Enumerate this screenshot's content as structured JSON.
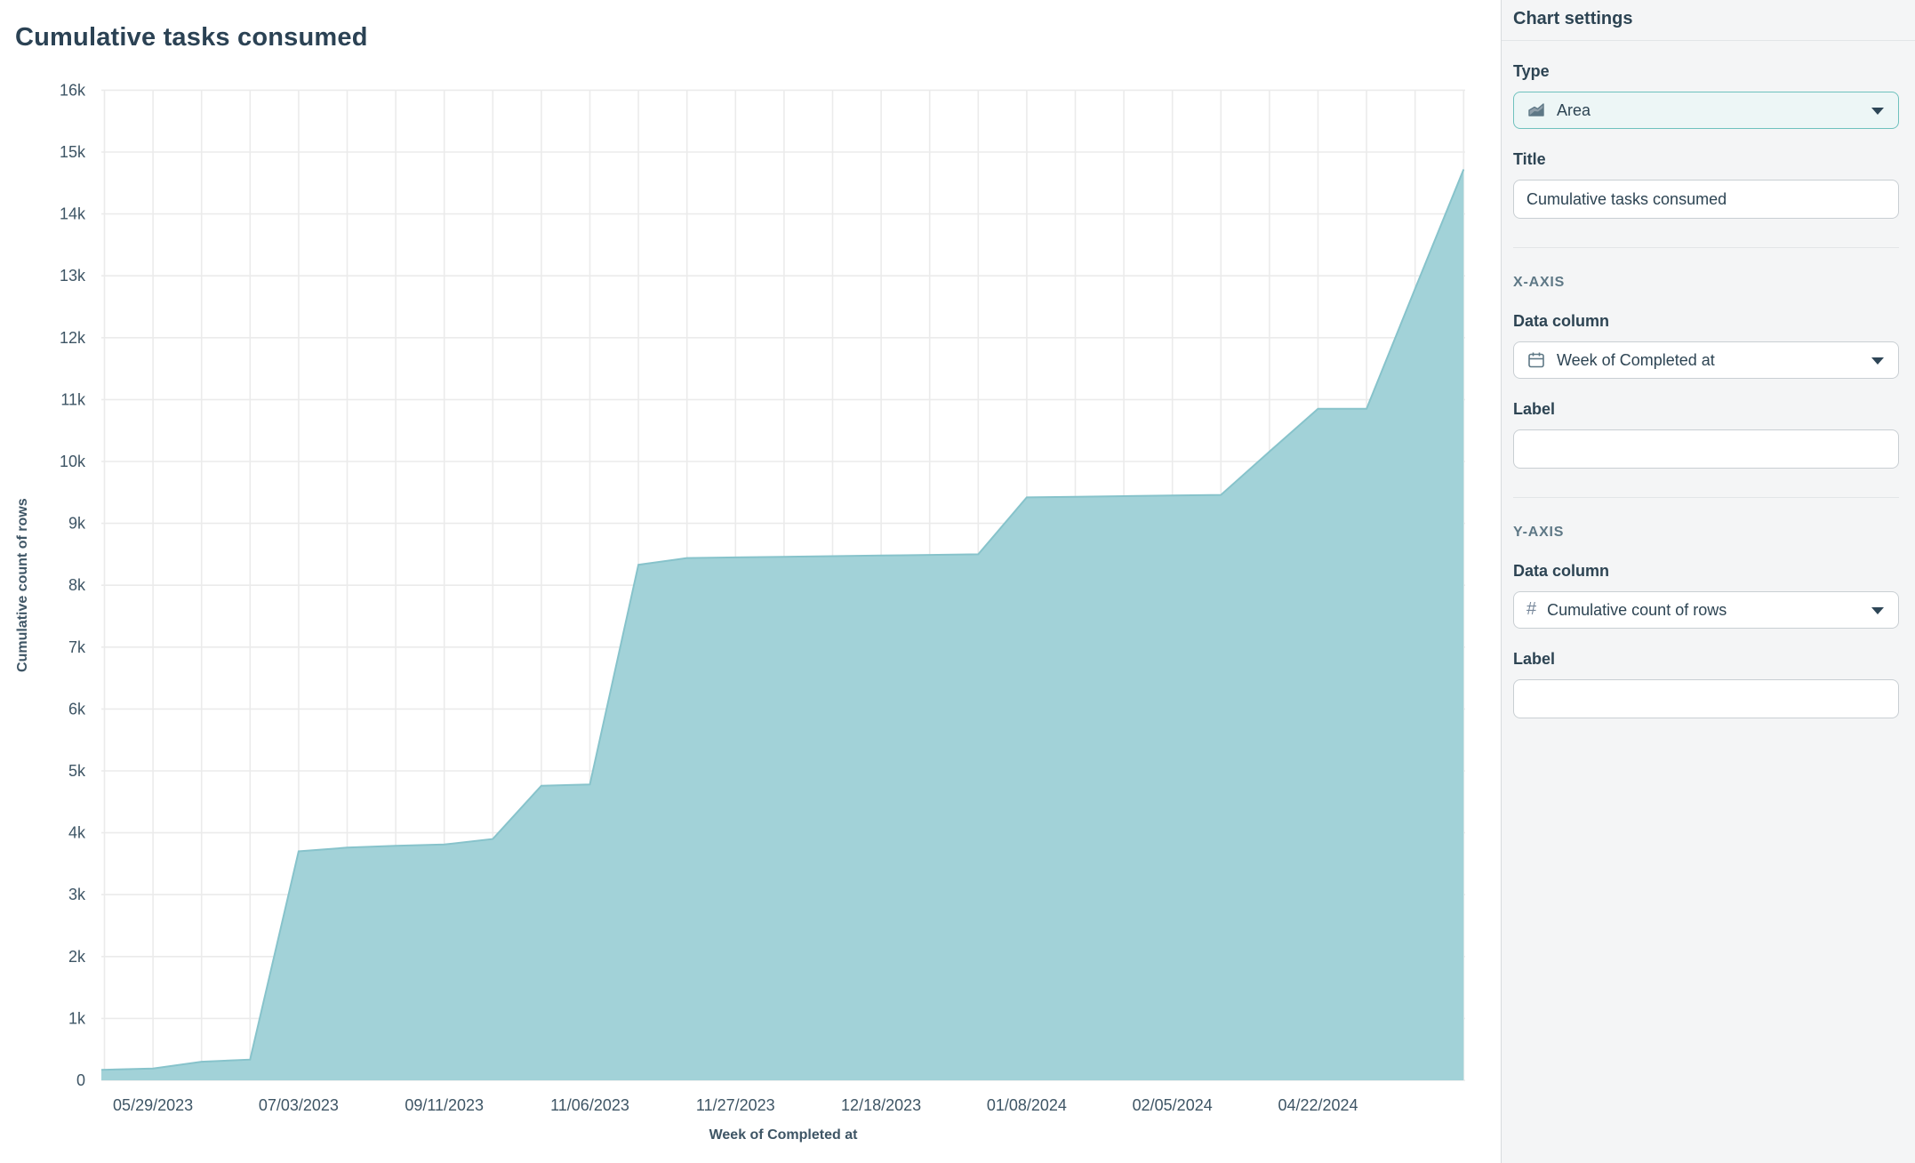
{
  "chart_data": {
    "type": "area",
    "title": "Cumulative tasks consumed",
    "xlabel": "Week of Completed at",
    "ylabel": "Cumulative count of rows",
    "x_tick_labels": [
      "05/29/2023",
      "07/03/2023",
      "09/11/2023",
      "11/06/2023",
      "11/27/2023",
      "12/18/2023",
      "01/08/2024",
      "02/05/2024",
      "04/22/2024"
    ],
    "x_tick_start_index": 1,
    "x_tick_every": 3,
    "y_tick_labels": [
      "0",
      "1k",
      "2k",
      "3k",
      "4k",
      "5k",
      "6k",
      "7k",
      "8k",
      "9k",
      "10k",
      "11k",
      "12k",
      "13k",
      "14k",
      "15k",
      "16k"
    ],
    "ylim": [
      0,
      16000
    ],
    "grid": true,
    "legend": "none",
    "values": [
      170,
      190,
      300,
      335,
      3700,
      3760,
      3790,
      3810,
      3900,
      4760,
      4780,
      8330,
      8440,
      8450,
      8460,
      8470,
      8480,
      8490,
      8500,
      9420,
      9430,
      9440,
      9450,
      9460,
      10160,
      10850,
      10850,
      12790,
      14720
    ],
    "colors": {
      "fill": "#a2d2d8",
      "line": "#87c3cb",
      "grid": "#ebebeb",
      "axis_text": "#3e5565",
      "title_text": "#2b4254"
    }
  },
  "panel": {
    "header": "Chart settings",
    "type_label": "Type",
    "type_value": "Area",
    "title_label": "Title",
    "title_value": "Cumulative tasks consumed",
    "x_axis": {
      "section": "X-AXIS",
      "data_column_label": "Data column",
      "data_column_value": "Week of Completed at",
      "label_label": "Label",
      "label_value": ""
    },
    "y_axis": {
      "section": "Y-AXIS",
      "data_column_label": "Data column",
      "data_column_value": "Cumulative count of rows",
      "label_label": "Label",
      "label_value": ""
    }
  }
}
